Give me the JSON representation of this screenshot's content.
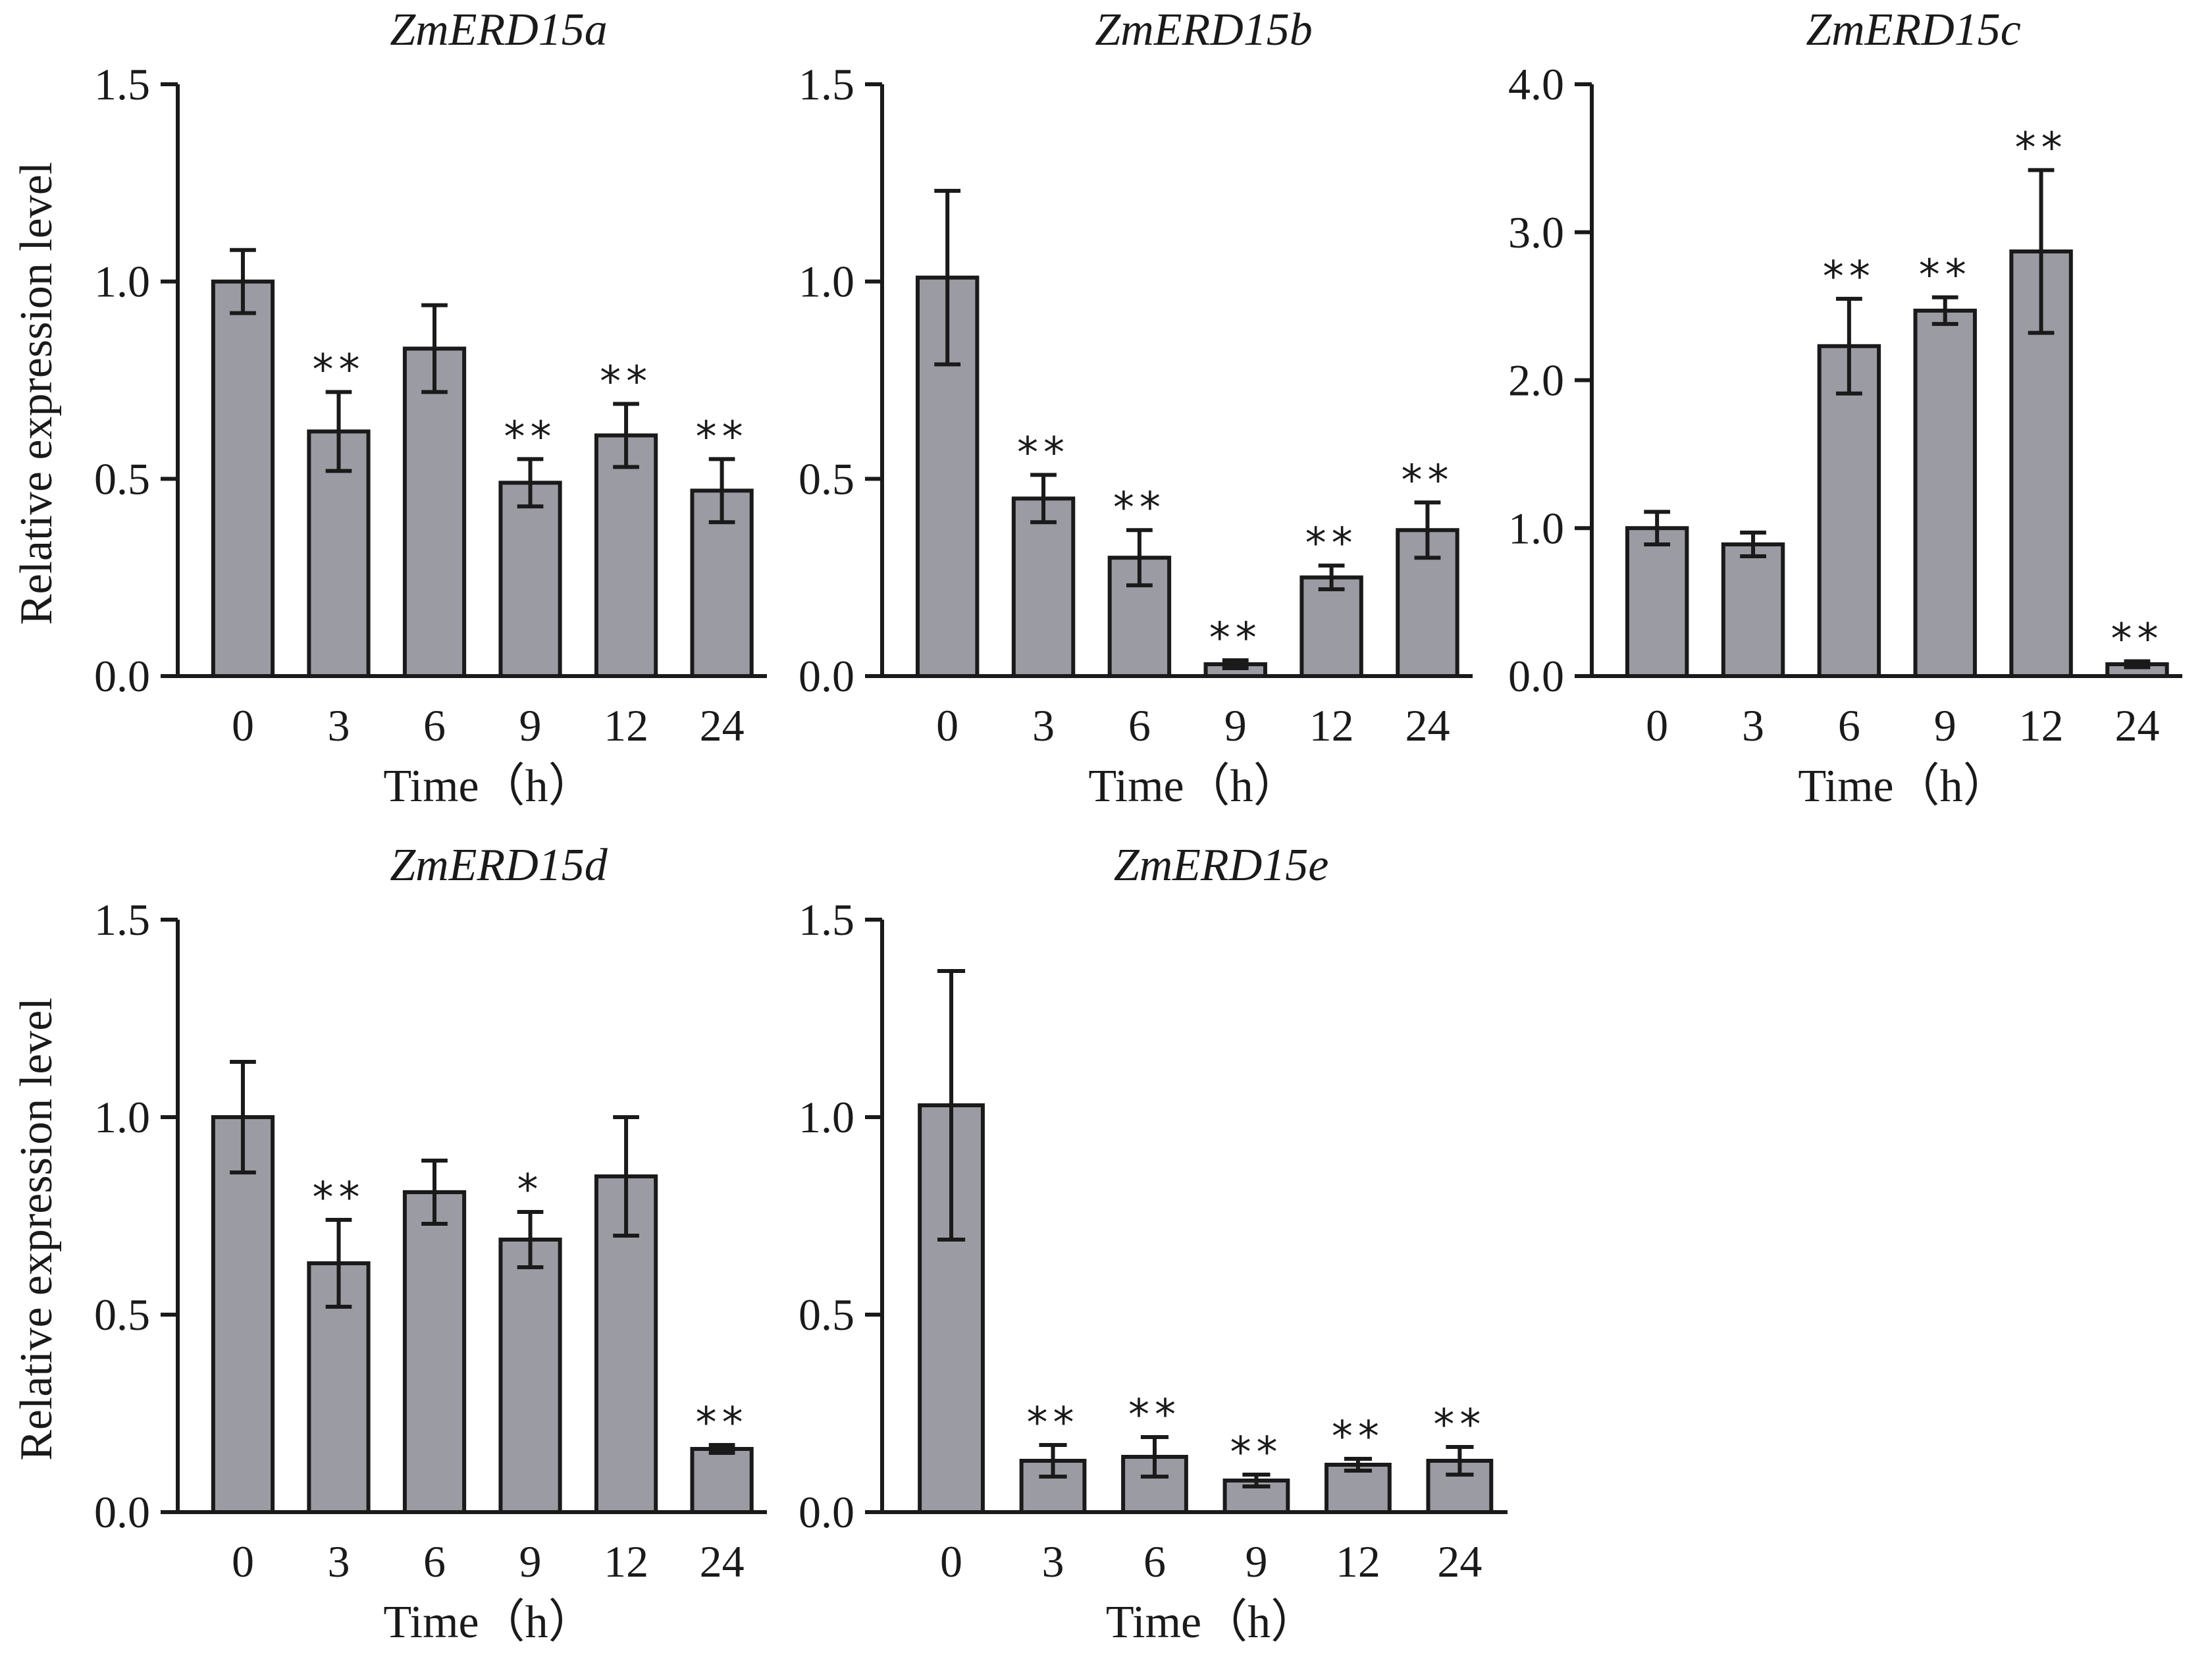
{
  "chart_data": [
    {
      "type": "bar",
      "title": "ZmERD15a",
      "xlabel": "Time（h）",
      "ylabel": "Relative expression level",
      "ylim": [
        0,
        1.5
      ],
      "yticks": [
        "0.0",
        "0.5",
        "1.0",
        "1.5"
      ],
      "categories": [
        "0",
        "3",
        "6",
        "9",
        "12",
        "24"
      ],
      "values": [
        1.0,
        0.62,
        0.83,
        0.49,
        0.61,
        0.47
      ],
      "errors": [
        0.08,
        0.1,
        0.11,
        0.06,
        0.08,
        0.08
      ],
      "significance": [
        "",
        "**",
        "",
        "**",
        "**",
        "**"
      ],
      "bar_color": "#9b9ba3",
      "grid": false,
      "legend": "none"
    },
    {
      "type": "bar",
      "title": "ZmERD15b",
      "xlabel": "Time（h）",
      "ylabel": "",
      "ylim": [
        0,
        1.5
      ],
      "yticks": [
        "0.0",
        "0.5",
        "1.0",
        "1.5"
      ],
      "categories": [
        "0",
        "3",
        "6",
        "9",
        "12",
        "24"
      ],
      "values": [
        1.01,
        0.45,
        0.3,
        0.03,
        0.25,
        0.37
      ],
      "errors": [
        0.22,
        0.06,
        0.07,
        0.01,
        0.03,
        0.07
      ],
      "significance": [
        "",
        "**",
        "**",
        "**",
        "**",
        "**"
      ],
      "bar_color": "#9b9ba3",
      "grid": false,
      "legend": "none"
    },
    {
      "type": "bar",
      "title": "ZmERD15c",
      "xlabel": "Time（h）",
      "ylabel": "",
      "ylim": [
        0,
        4.0
      ],
      "yticks": [
        "0.0",
        "1.0",
        "2.0",
        "3.0",
        "4.0"
      ],
      "categories": [
        "0",
        "3",
        "6",
        "9",
        "12",
        "24"
      ],
      "values": [
        1.0,
        0.89,
        2.23,
        2.47,
        2.87,
        0.08
      ],
      "errors": [
        0.11,
        0.08,
        0.32,
        0.09,
        0.55,
        0.02
      ],
      "significance": [
        "",
        "",
        "**",
        "**",
        "**",
        "**"
      ],
      "bar_color": "#9b9ba3",
      "grid": false,
      "legend": "none"
    },
    {
      "type": "bar",
      "title": "ZmERD15d",
      "xlabel": "Time（h）",
      "ylabel": "Relative expression level",
      "ylim": [
        0,
        1.5
      ],
      "yticks": [
        "0.0",
        "0.5",
        "1.0",
        "1.5"
      ],
      "categories": [
        "0",
        "3",
        "6",
        "9",
        "12",
        "24"
      ],
      "values": [
        1.0,
        0.63,
        0.81,
        0.69,
        0.85,
        0.16
      ],
      "errors": [
        0.14,
        0.11,
        0.08,
        0.07,
        0.15,
        0.01
      ],
      "significance": [
        "",
        "**",
        "",
        "*",
        "",
        "**"
      ],
      "bar_color": "#9b9ba3",
      "grid": false,
      "legend": "none"
    },
    {
      "type": "bar",
      "title": "ZmERD15e",
      "xlabel": "Time（h）",
      "ylabel": "",
      "ylim": [
        0,
        1.5
      ],
      "yticks": [
        "0.0",
        "0.5",
        "1.0",
        "1.5"
      ],
      "categories": [
        "0",
        "3",
        "6",
        "9",
        "12",
        "24"
      ],
      "values": [
        1.03,
        0.13,
        0.14,
        0.08,
        0.12,
        0.13
      ],
      "errors": [
        0.34,
        0.04,
        0.05,
        0.015,
        0.015,
        0.035
      ],
      "significance": [
        "",
        "**",
        "**",
        "**",
        "**",
        "**"
      ],
      "bar_color": "#9b9ba3",
      "grid": false,
      "legend": "none"
    }
  ]
}
